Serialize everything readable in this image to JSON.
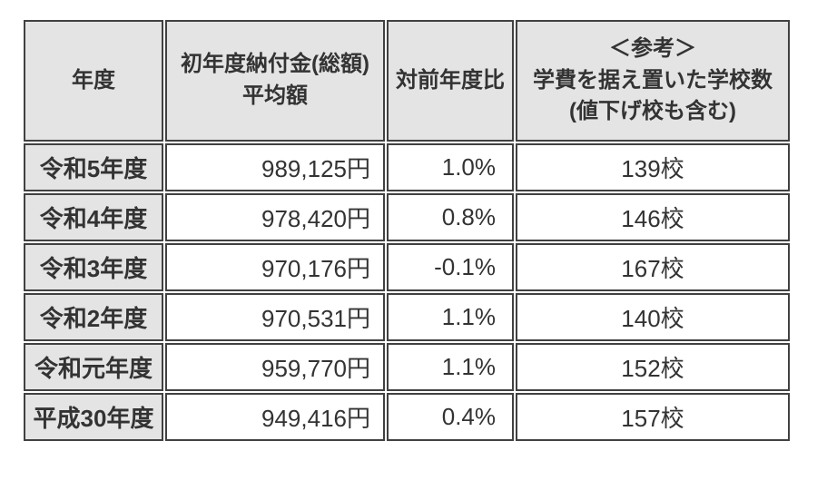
{
  "chart_data": {
    "type": "table",
    "header": {
      "year": "年度",
      "amount_line1": "初年度納付金(総額)",
      "amount_line2": "平均額",
      "yoy": "対前年度比",
      "ref_line1": "＜参考＞",
      "ref_line2": "学費を据え置いた学校数",
      "ref_line3": "(値下げ校も含む)"
    },
    "rows": [
      {
        "year": "令和5年度",
        "amount": "989,125円",
        "amount_yen": 989125,
        "yoy": "1.0%",
        "yoy_percent": 1.0,
        "schools": "139校",
        "schools_count": 139
      },
      {
        "year": "令和4年度",
        "amount": "978,420円",
        "amount_yen": 978420,
        "yoy": "0.8%",
        "yoy_percent": 0.8,
        "schools": "146校",
        "schools_count": 146
      },
      {
        "year": "令和3年度",
        "amount": "970,176円",
        "amount_yen": 970176,
        "yoy": "-0.1%",
        "yoy_percent": -0.1,
        "schools": "167校",
        "schools_count": 167
      },
      {
        "year": "令和2年度",
        "amount": "970,531円",
        "amount_yen": 970531,
        "yoy": "1.1%",
        "yoy_percent": 1.1,
        "schools": "140校",
        "schools_count": 140
      },
      {
        "year": "令和元年度",
        "amount": "959,770円",
        "amount_yen": 959770,
        "yoy": "1.1%",
        "yoy_percent": 1.1,
        "schools": "152校",
        "schools_count": 152
      },
      {
        "year": "平成30年度",
        "amount": "949,416円",
        "amount_yen": 949416,
        "yoy": "0.4%",
        "yoy_percent": 0.4,
        "schools": "157校",
        "schools_count": 157
      }
    ],
    "colors": {
      "header_bg": "#e4e4e4",
      "cell_bg": "#ffffff",
      "border": "#414141",
      "text": "#333333"
    }
  }
}
